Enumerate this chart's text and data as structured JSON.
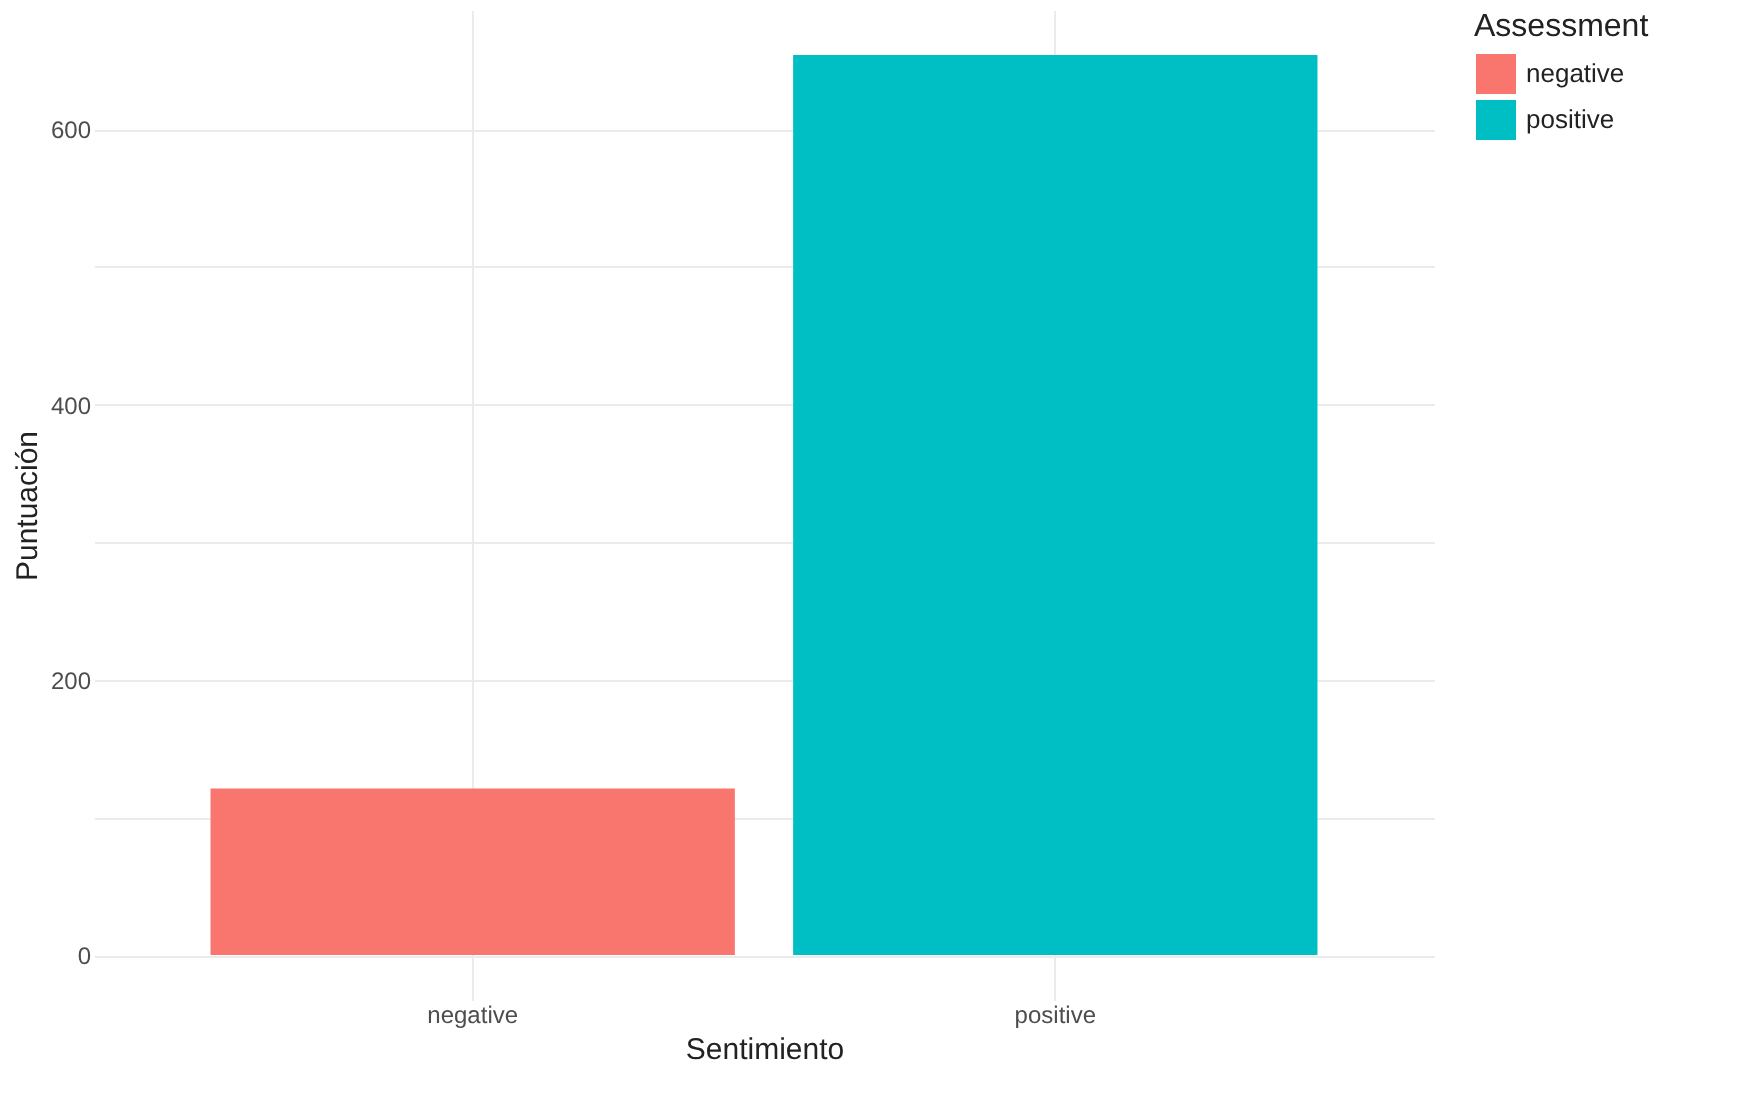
{
  "chart_data": {
    "type": "bar",
    "xlabel": "Sentimiento",
    "ylabel": "Puntuación",
    "legend_title": "Assessment",
    "categories": [
      "negative",
      "positive"
    ],
    "series": [
      {
        "name": "negative",
        "color": "#f8766d",
        "values": [
          121,
          null
        ]
      },
      {
        "name": "positive",
        "color": "#00bfc4",
        "values": [
          null,
          654
        ]
      }
    ],
    "ylim": [
      -32.7,
      686.7
    ],
    "yticks": [
      0,
      {
        "value": 100,
        "label": null
      },
      200,
      {
        "value": 300,
        "label": null
      },
      400,
      {
        "value": 500,
        "label": null
      },
      600
    ],
    "grid": true,
    "legend": "right"
  }
}
